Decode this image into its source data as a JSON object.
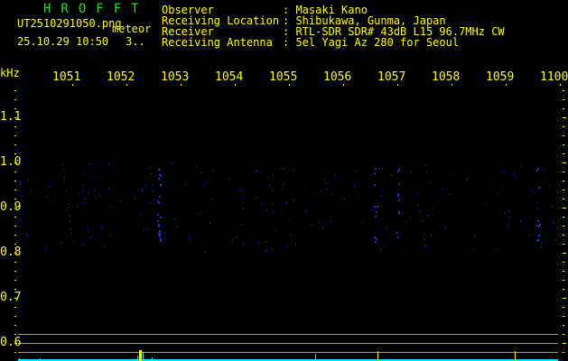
{
  "app_title": "HROFFT",
  "file_name": "UT2510291050.png",
  "mode_label": "meteor",
  "datetime": "25.10.29 10:50",
  "count": "3..",
  "info": [
    {
      "label": "Observer",
      "value": "Masaki Kano"
    },
    {
      "label": "Receiving Location",
      "value": "Shibukawa, Gunma, Japan"
    },
    {
      "label": "Receiver",
      "value": "RTL-SDR SDR# 43dB L15 96.7MHz CW"
    },
    {
      "label": "Receiving Antenna",
      "value": "5el Yagi Az 280 for Seoul"
    }
  ],
  "axis": {
    "y_unit": "kHz",
    "x_labels": [
      "1051",
      "1052",
      "1053",
      "1054",
      "1055",
      "1056",
      "1057",
      "1058",
      "1059",
      "1100"
    ],
    "y_labels": [
      "1.1",
      "1.0",
      "0.9",
      "0.8",
      "0.7",
      "0.6"
    ]
  },
  "colors": {
    "text": "#ffff00",
    "title": "#22dd22",
    "spectrum": "#00e5ff",
    "signal": "#ffff00",
    "grid": "#9a9a9a"
  },
  "meteor_echoes_minutes": [
    1052.6,
    1056.6,
    1057.0,
    1059.6
  ]
}
